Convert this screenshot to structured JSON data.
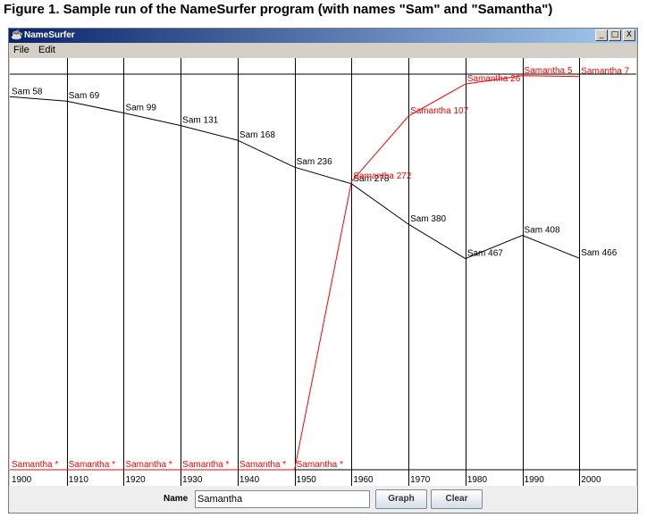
{
  "figure_title": "Figure 1. Sample run of the NameSurfer program (with names \"Sam\" and \"Samantha\")",
  "window": {
    "title": "NameSurfer",
    "buttons": {
      "minimize": "_",
      "maximize": "□",
      "close": "X"
    }
  },
  "menu": {
    "items": [
      {
        "label": "File"
      },
      {
        "label": "Edit"
      }
    ]
  },
  "controls": {
    "name_label": "Name",
    "name_value": "Samantha",
    "graph_label": "Graph",
    "clear_label": "Clear"
  },
  "colors": {
    "sam": "#000000",
    "samantha": "#ff0000",
    "grid": "#000000"
  },
  "chart_data": {
    "type": "line",
    "decades": [
      "1900",
      "1910",
      "1920",
      "1930",
      "1940",
      "1950",
      "1960",
      "1970",
      "1980",
      "1990",
      "2000"
    ],
    "rank_range": [
      1,
      1000
    ],
    "zero_rank_marker": "*",
    "series": [
      {
        "name": "Sam",
        "color": "#000000",
        "ranks": [
          58,
          69,
          99,
          131,
          168,
          236,
          278,
          380,
          467,
          408,
          466
        ],
        "labels": [
          "Sam 58",
          "Sam 69",
          "Sam 99",
          "Sam 131",
          "Sam 168",
          "Sam 236",
          "Sam 278",
          "Sam 380",
          "Sam 467",
          "Sam 408",
          "Sam 466"
        ]
      },
      {
        "name": "Samantha",
        "color": "#ff0000",
        "ranks": [
          0,
          0,
          0,
          0,
          0,
          0,
          272,
          107,
          26,
          5,
          7
        ],
        "labels": [
          "Samantha *",
          "Samantha *",
          "Samantha *",
          "Samantha *",
          "Samantha *",
          "Samantha *",
          "Samantha 272",
          "Samantha 107",
          "Samantha 26",
          "Samantha 5",
          "Samantha 7"
        ]
      }
    ]
  }
}
